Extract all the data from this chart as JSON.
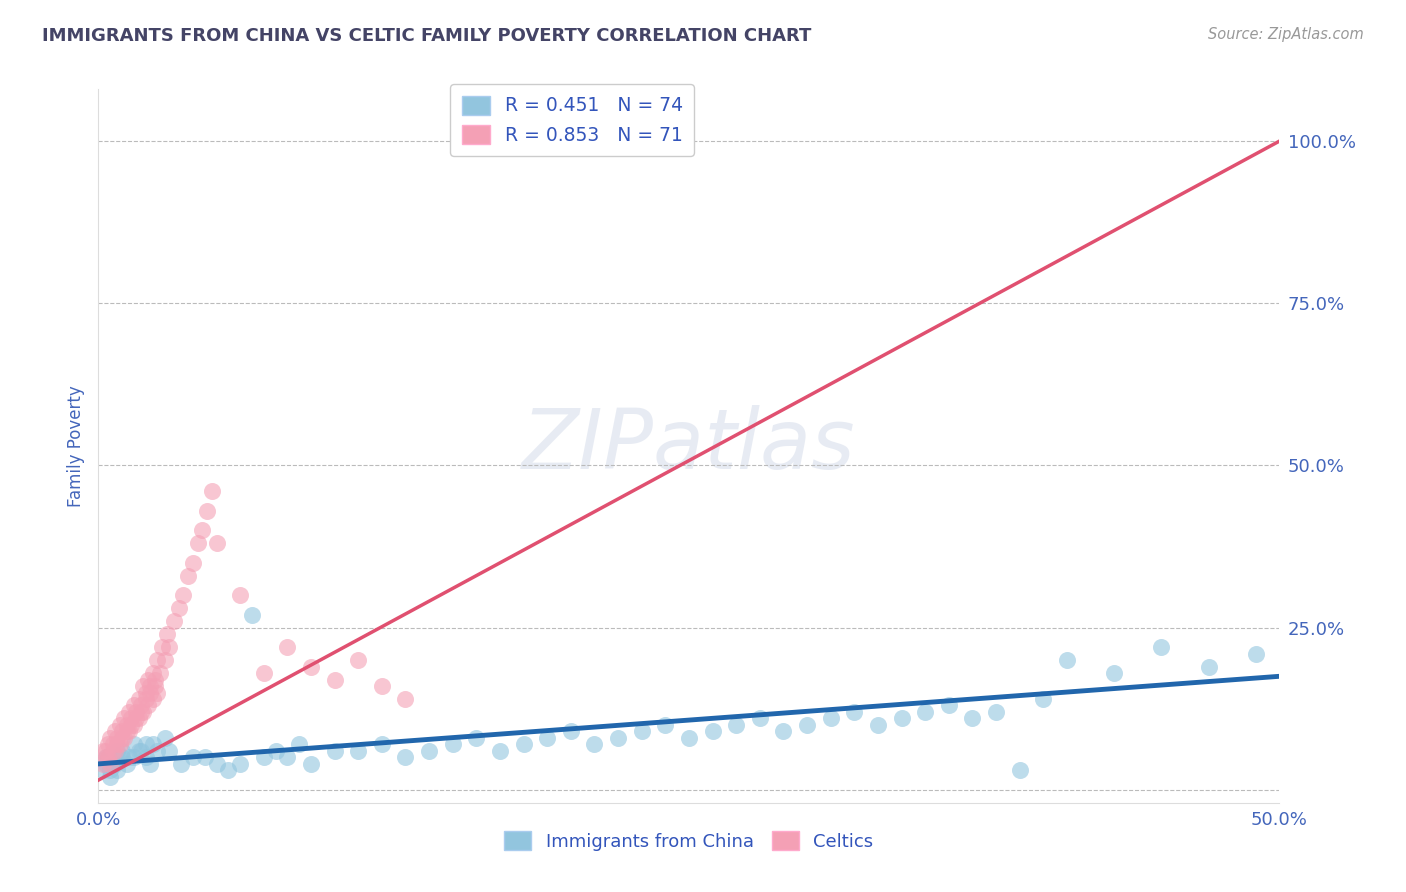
{
  "title": "IMMIGRANTS FROM CHINA VS CELTIC FAMILY POVERTY CORRELATION CHART",
  "source_text": "Source: ZipAtlas.com",
  "ylabel": "Family Poverty",
  "watermark": "ZIPatlas",
  "xlim": [
    0.0,
    0.5
  ],
  "ylim": [
    -0.02,
    1.08
  ],
  "xticks": [
    0.0,
    0.1,
    0.2,
    0.3,
    0.4,
    0.5
  ],
  "yticks": [
    0.0,
    0.25,
    0.5,
    0.75,
    1.0
  ],
  "ytick_labels": [
    "",
    "25.0%",
    "50.0%",
    "75.0%",
    "100.0%"
  ],
  "blue_color": "#92c5de",
  "pink_color": "#f4a0b5",
  "blue_line_color": "#2166ac",
  "pink_line_color": "#e05070",
  "background_color": "#ffffff",
  "grid_color": "#bbbbbb",
  "tick_color": "#4466bb",
  "legend_label_color": "#3355bb",
  "R_blue_text": "R = 0.451",
  "N_blue_text": "N = 74",
  "R_pink_text": "R = 0.853",
  "N_pink_text": "N = 71",
  "blue_scatter_x": [
    0.003,
    0.005,
    0.006,
    0.008,
    0.01,
    0.012,
    0.015,
    0.018,
    0.02,
    0.022,
    0.025,
    0.005,
    0.008,
    0.003,
    0.002,
    0.004,
    0.006,
    0.01,
    0.015,
    0.02,
    0.03,
    0.045,
    0.06,
    0.08,
    0.1,
    0.12,
    0.14,
    0.16,
    0.18,
    0.2,
    0.22,
    0.24,
    0.26,
    0.28,
    0.3,
    0.32,
    0.34,
    0.36,
    0.38,
    0.4,
    0.035,
    0.055,
    0.07,
    0.09,
    0.11,
    0.13,
    0.15,
    0.17,
    0.19,
    0.21,
    0.23,
    0.25,
    0.27,
    0.29,
    0.31,
    0.33,
    0.35,
    0.37,
    0.39,
    0.41,
    0.43,
    0.45,
    0.47,
    0.49,
    0.007,
    0.013,
    0.017,
    0.023,
    0.028,
    0.04,
    0.05,
    0.065,
    0.075,
    0.085
  ],
  "blue_scatter_y": [
    0.05,
    0.03,
    0.04,
    0.06,
    0.05,
    0.04,
    0.07,
    0.06,
    0.05,
    0.04,
    0.06,
    0.02,
    0.03,
    0.04,
    0.03,
    0.05,
    0.04,
    0.06,
    0.05,
    0.07,
    0.06,
    0.05,
    0.04,
    0.05,
    0.06,
    0.07,
    0.06,
    0.08,
    0.07,
    0.09,
    0.08,
    0.1,
    0.09,
    0.11,
    0.1,
    0.12,
    0.11,
    0.13,
    0.12,
    0.14,
    0.04,
    0.03,
    0.05,
    0.04,
    0.06,
    0.05,
    0.07,
    0.06,
    0.08,
    0.07,
    0.09,
    0.08,
    0.1,
    0.09,
    0.11,
    0.1,
    0.12,
    0.11,
    0.03,
    0.2,
    0.18,
    0.22,
    0.19,
    0.21,
    0.04,
    0.05,
    0.06,
    0.07,
    0.08,
    0.05,
    0.04,
    0.27,
    0.06,
    0.07
  ],
  "pink_scatter_x": [
    0.002,
    0.003,
    0.004,
    0.005,
    0.006,
    0.007,
    0.008,
    0.009,
    0.01,
    0.011,
    0.012,
    0.013,
    0.014,
    0.015,
    0.016,
    0.017,
    0.018,
    0.019,
    0.02,
    0.021,
    0.022,
    0.023,
    0.024,
    0.025,
    0.026,
    0.027,
    0.028,
    0.029,
    0.03,
    0.032,
    0.034,
    0.036,
    0.038,
    0.04,
    0.042,
    0.044,
    0.046,
    0.048,
    0.05,
    0.002,
    0.003,
    0.004,
    0.005,
    0.006,
    0.007,
    0.008,
    0.009,
    0.01,
    0.011,
    0.012,
    0.013,
    0.014,
    0.015,
    0.016,
    0.017,
    0.018,
    0.019,
    0.02,
    0.021,
    0.022,
    0.023,
    0.024,
    0.025,
    0.06,
    0.07,
    0.08,
    0.09,
    0.1,
    0.11,
    0.12,
    0.13
  ],
  "pink_scatter_y": [
    0.06,
    0.05,
    0.07,
    0.08,
    0.06,
    0.09,
    0.07,
    0.1,
    0.08,
    0.11,
    0.09,
    0.12,
    0.1,
    0.13,
    0.11,
    0.14,
    0.12,
    0.16,
    0.14,
    0.17,
    0.15,
    0.18,
    0.16,
    0.2,
    0.18,
    0.22,
    0.2,
    0.24,
    0.22,
    0.26,
    0.28,
    0.3,
    0.33,
    0.35,
    0.38,
    0.4,
    0.43,
    0.46,
    0.38,
    0.04,
    0.06,
    0.05,
    0.04,
    0.07,
    0.06,
    0.08,
    0.07,
    0.09,
    0.08,
    0.1,
    0.09,
    0.11,
    0.1,
    0.12,
    0.11,
    0.13,
    0.12,
    0.15,
    0.13,
    0.16,
    0.14,
    0.17,
    0.15,
    0.3,
    0.18,
    0.22,
    0.19,
    0.17,
    0.2,
    0.16,
    0.14
  ],
  "blue_trend_x": [
    0.0,
    0.5
  ],
  "blue_trend_y": [
    0.04,
    0.175
  ],
  "pink_trend_x": [
    0.0,
    0.5
  ],
  "pink_trend_y": [
    0.015,
    1.0
  ]
}
